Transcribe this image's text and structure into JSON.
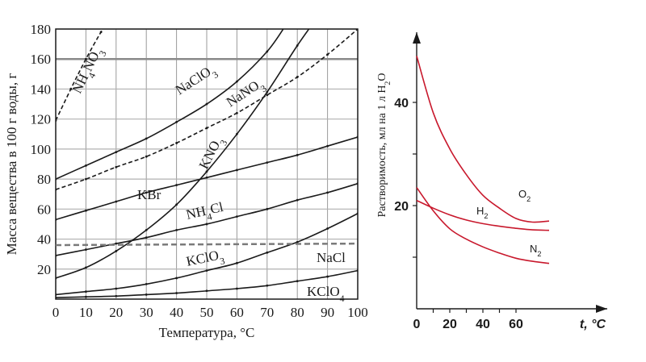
{
  "chart_data": [
    {
      "type": "line",
      "title": "",
      "xlabel": "Температура, °C",
      "ylabel": "Масса вещества в 100 г воды, г",
      "xlim": [
        0,
        100
      ],
      "ylim": [
        0,
        180
      ],
      "xticks": [
        "0",
        "10",
        "20",
        "30",
        "40",
        "50",
        "60",
        "70",
        "80",
        "90",
        "100"
      ],
      "yticks": [
        "20",
        "40",
        "60",
        "80",
        "100",
        "120",
        "140",
        "160",
        "180"
      ],
      "grid": true,
      "series": [
        {
          "name": "NH4NO3",
          "label_main": "NH",
          "label_sub": "4",
          "label_main2": "NO",
          "label_sub2": "3",
          "dashed": true,
          "x": [
            0,
            5,
            10,
            15,
            17
          ],
          "y": [
            119,
            140,
            160,
            178,
            184
          ]
        },
        {
          "name": "NaClO3",
          "label_main": "NaClO",
          "label_sub": "3",
          "label_main2": "",
          "label_sub2": "",
          "dashed": false,
          "x": [
            0,
            10,
            20,
            30,
            40,
            50,
            60,
            70,
            76
          ],
          "y": [
            80,
            89,
            98,
            107,
            118,
            130,
            145,
            165,
            182
          ]
        },
        {
          "name": "NaNO3",
          "label_main": "NaNO",
          "label_sub": "3",
          "label_main2": "",
          "label_sub2": "",
          "dashed": true,
          "x": [
            0,
            10,
            20,
            30,
            40,
            50,
            60,
            70,
            80,
            90,
            100
          ],
          "y": [
            73,
            80,
            88,
            95,
            104,
            114,
            124,
            136,
            148,
            163,
            180
          ]
        },
        {
          "name": "KNO3",
          "label_main": "KNO",
          "label_sub": "3",
          "label_main2": "",
          "label_sub2": "",
          "dashed": false,
          "x": [
            0,
            10,
            20,
            30,
            40,
            50,
            60,
            70,
            80,
            86
          ],
          "y": [
            14,
            21,
            32,
            46,
            63,
            85,
            110,
            138,
            169,
            186
          ]
        },
        {
          "name": "KBr",
          "label_main": "KBr",
          "label_sub": "",
          "label_main2": "",
          "label_sub2": "",
          "dashed": false,
          "x": [
            0,
            10,
            20,
            30,
            40,
            50,
            60,
            70,
            80,
            90,
            100
          ],
          "y": [
            53,
            59,
            65,
            71,
            76,
            81,
            86,
            91,
            96,
            102,
            108
          ]
        },
        {
          "name": "NH4Cl",
          "label_main": "NH",
          "label_sub": "4",
          "label_main2": "Cl",
          "label_sub2": "",
          "dashed": false,
          "x": [
            0,
            10,
            20,
            30,
            40,
            50,
            60,
            70,
            80,
            90,
            100
          ],
          "y": [
            29,
            33,
            37,
            41,
            46,
            50,
            55,
            60,
            66,
            71,
            77
          ]
        },
        {
          "name": "KClO3",
          "label_main": "KClO",
          "label_sub": "3",
          "label_main2": "",
          "label_sub2": "",
          "dashed": false,
          "x": [
            0,
            10,
            20,
            30,
            40,
            50,
            60,
            70,
            80,
            90,
            100
          ],
          "y": [
            3,
            5,
            7,
            10,
            14,
            19,
            24,
            31,
            38,
            47,
            57
          ]
        },
        {
          "name": "KClO4",
          "label_main": "KClO",
          "label_sub": "4",
          "label_main2": "",
          "label_sub2": "",
          "dashed": false,
          "x": [
            0,
            10,
            20,
            30,
            40,
            50,
            60,
            70,
            80,
            90,
            100
          ],
          "y": [
            1,
            1.5,
            2,
            3,
            4,
            5.5,
            7,
            9,
            12,
            15,
            19
          ]
        },
        {
          "name": "NaCl",
          "label_main": "NaCl",
          "label_sub": "",
          "label_main2": "",
          "label_sub2": "",
          "dashed": true,
          "x": [
            0,
            100
          ],
          "y": [
            36,
            37
          ]
        }
      ]
    },
    {
      "type": "line",
      "title": "",
      "xlabel": "t, °C",
      "ylabel_main": "Растворимость, мл на 1 л H",
      "ylabel_sub": "2",
      "ylabel_end": "O",
      "xlim": [
        0,
        80
      ],
      "ylim": [
        0,
        52
      ],
      "xticks": [
        "0",
        "20",
        "40",
        "60"
      ],
      "yticks": [
        "20",
        "40"
      ],
      "color": "#c8182c",
      "series": [
        {
          "name": "O2",
          "label_main": "O",
          "label_sub": "2",
          "x": [
            0,
            10,
            20,
            30,
            40,
            50,
            60,
            70,
            80
          ],
          "y": [
            49,
            38,
            31,
            26,
            22,
            19.5,
            17.5,
            16.8,
            17
          ]
        },
        {
          "name": "H2",
          "label_main": "H",
          "label_sub": "2",
          "x": [
            0,
            10,
            20,
            30,
            40,
            50,
            60,
            70,
            80
          ],
          "y": [
            21,
            19.5,
            18.2,
            17.2,
            16.5,
            16,
            15.6,
            15.3,
            15.2
          ]
        },
        {
          "name": "N2",
          "label_main": "N",
          "label_sub": "2",
          "x": [
            0,
            10,
            20,
            30,
            40,
            50,
            60,
            70,
            80
          ],
          "y": [
            23.5,
            19,
            15.5,
            13.5,
            12,
            10.8,
            9.8,
            9.2,
            8.8
          ]
        }
      ]
    }
  ]
}
